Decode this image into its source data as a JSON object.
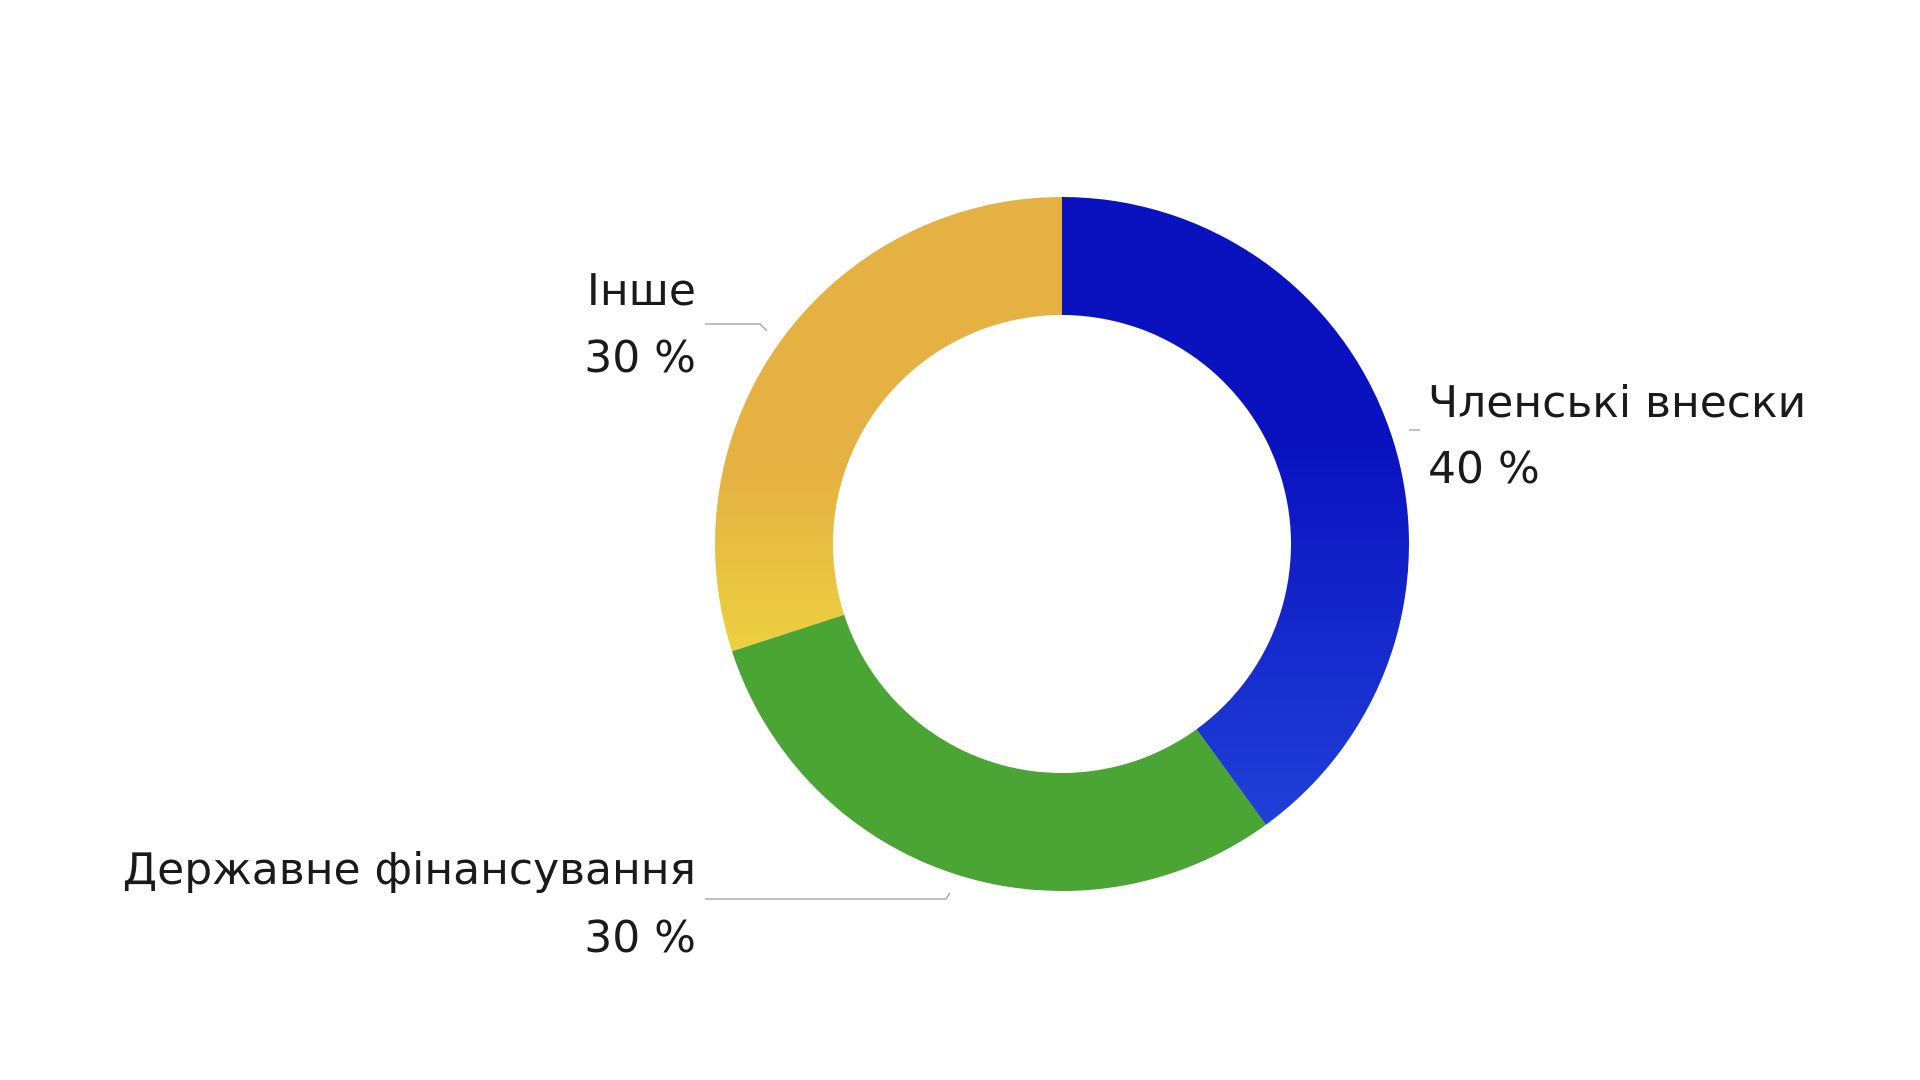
{
  "chart_data": {
    "type": "donut",
    "categories": [
      "Членські внески",
      "Державне фінансування",
      "Інше"
    ],
    "values": [
      40,
      30,
      30
    ],
    "value_labels": [
      "40 %",
      "30 %",
      "30 %"
    ],
    "colors": [
      "#1424c4",
      "#4aa535",
      "#e5b142"
    ]
  }
}
